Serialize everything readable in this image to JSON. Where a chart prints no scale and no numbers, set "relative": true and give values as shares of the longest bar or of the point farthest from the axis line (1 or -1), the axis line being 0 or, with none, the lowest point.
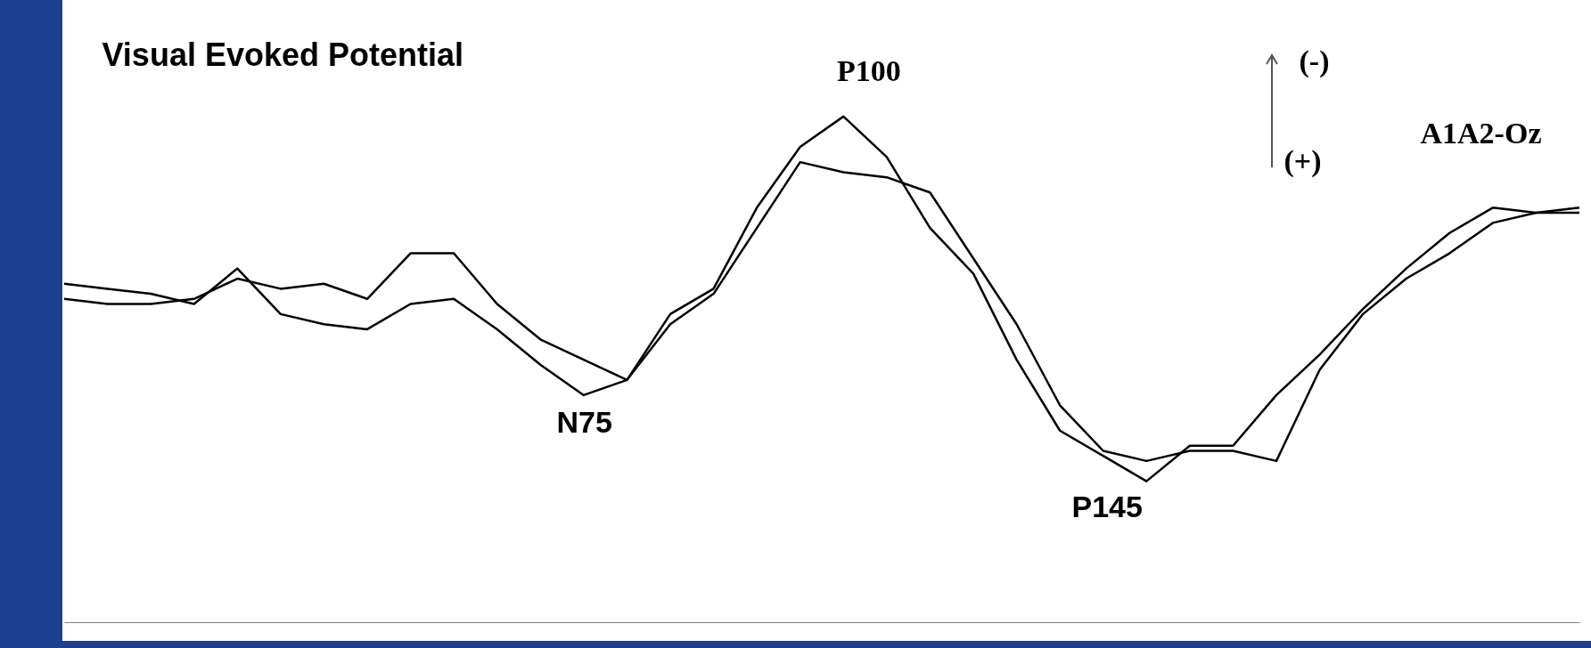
{
  "chart_data": {
    "type": "line",
    "title": "Visual Evoked Potential",
    "relative": true,
    "tick_labels": false,
    "categories": [
      null,
      null,
      null,
      null,
      null,
      null,
      null,
      null,
      null,
      null,
      null,
      null,
      null,
      null,
      null,
      null,
      null,
      null,
      null,
      null,
      null,
      null,
      null,
      null,
      null,
      null,
      null,
      null,
      null,
      null,
      null,
      null,
      null,
      null,
      null,
      null
    ],
    "series": [
      {
        "color": "#000000",
        "values": [
          0.64,
          0.63,
          0.63,
          0.64,
          0.68,
          0.66,
          0.67,
          0.64,
          0.73,
          0.73,
          0.63,
          0.56,
          0.52,
          0.48,
          0.59,
          0.65,
          0.78,
          0.91,
          0.89,
          0.88,
          0.85,
          0.72,
          0.59,
          0.43,
          0.34,
          0.32,
          0.34,
          0.34,
          0.32,
          0.5,
          0.61,
          0.68,
          0.73,
          0.79,
          0.81,
          0.82
        ]
      },
      {
        "color": "#000000",
        "values": [
          0.67,
          0.66,
          0.65,
          0.63,
          0.7,
          0.61,
          0.59,
          0.58,
          0.63,
          0.64,
          0.58,
          0.51,
          0.45,
          0.48,
          0.61,
          0.66,
          0.82,
          0.94,
          1.0,
          0.92,
          0.78,
          0.69,
          0.52,
          0.38,
          0.33,
          0.28,
          0.35,
          0.35,
          0.45,
          0.53,
          0.62,
          0.7,
          0.77,
          0.82,
          0.81,
          0.81
        ]
      }
    ],
    "annotations": [
      "P100",
      "N75",
      "P145",
      "(-)",
      "(+)",
      "A1A2-Oz"
    ]
  }
}
